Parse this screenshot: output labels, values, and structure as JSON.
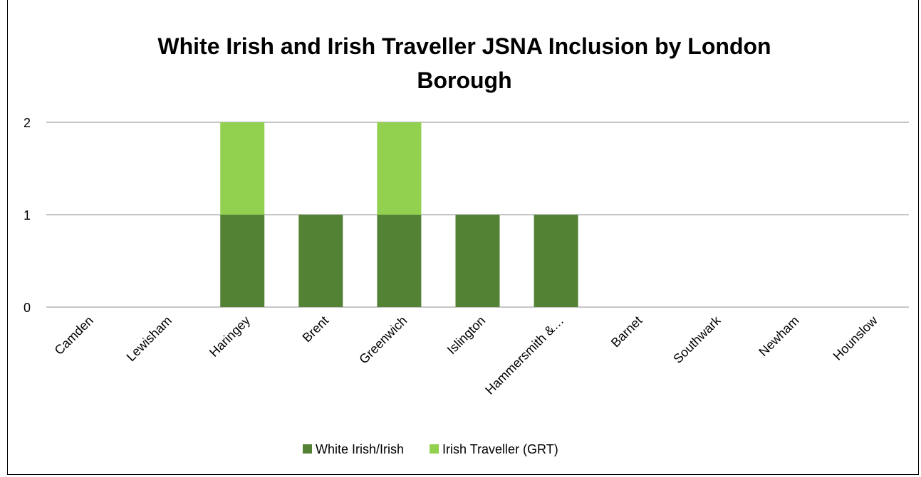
{
  "chart_data": {
    "type": "bar",
    "stacked": true,
    "title_lines": [
      "White Irish and Irish Traveller JSNA Inclusion by London",
      "Borough"
    ],
    "xlabel": "",
    "ylabel": "",
    "categories": [
      "Camden",
      "Lewisham",
      "Haringey",
      "Brent",
      "Greenwich",
      "Islington",
      "Hammersmith &…",
      "Barnet",
      "Southwark",
      "Newham",
      "Hounslow"
    ],
    "series": [
      {
        "name": "White Irish/Irish",
        "color": "#548235",
        "values": [
          0,
          0,
          1,
          1,
          1,
          1,
          1,
          0,
          0,
          0,
          0
        ]
      },
      {
        "name": "Irish Traveller (GRT)",
        "color": "#92d050",
        "values": [
          0,
          0,
          1,
          0,
          1,
          0,
          0,
          0,
          0,
          0,
          0
        ]
      }
    ],
    "ylim": [
      0,
      2
    ],
    "yticks": [
      "0",
      "1",
      "2"
    ],
    "grid": true,
    "legend_position": "bottom"
  }
}
